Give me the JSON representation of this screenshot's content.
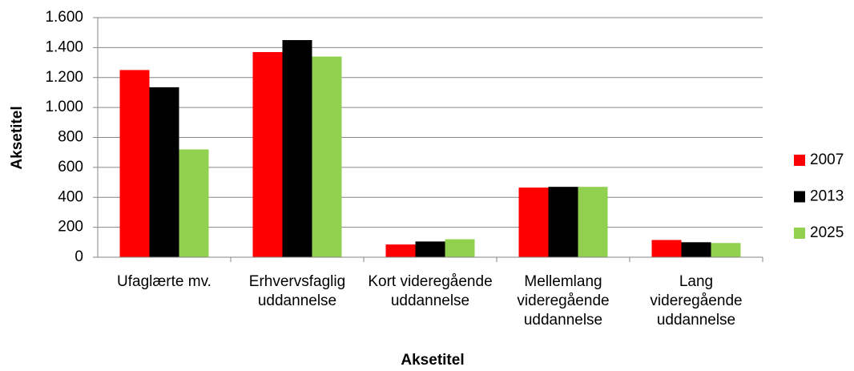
{
  "chart_data": {
    "type": "bar",
    "x_label": "Aksetitel",
    "y_label": "Aksetitel",
    "categories": [
      "Ufaglærte mv.",
      "Erhvervsfaglig uddannelse",
      "Kort videregående uddannelse",
      "Mellemlang videregående uddannelse",
      "Lang videregående uddannelse"
    ],
    "series": [
      {
        "name": "2007",
        "color": "#ff0000",
        "values": [
          1250,
          1370,
          85,
          465,
          115
        ]
      },
      {
        "name": "2013",
        "color": "#000000",
        "values": [
          1135,
          1450,
          105,
          470,
          100
        ]
      },
      {
        "name": "2025",
        "color": "#92d050",
        "values": [
          720,
          1340,
          120,
          470,
          95
        ]
      }
    ],
    "ylim": [
      0,
      1600
    ],
    "yticks": [
      0,
      200,
      400,
      600,
      800,
      {
        "value": 1000,
        "label": "1.000"
      },
      {
        "value": 1200,
        "label": "1.200"
      },
      {
        "value": 1400,
        "label": "1.400"
      },
      {
        "value": 1600,
        "label": "1.600"
      }
    ],
    "grid": true,
    "legend": "right"
  }
}
